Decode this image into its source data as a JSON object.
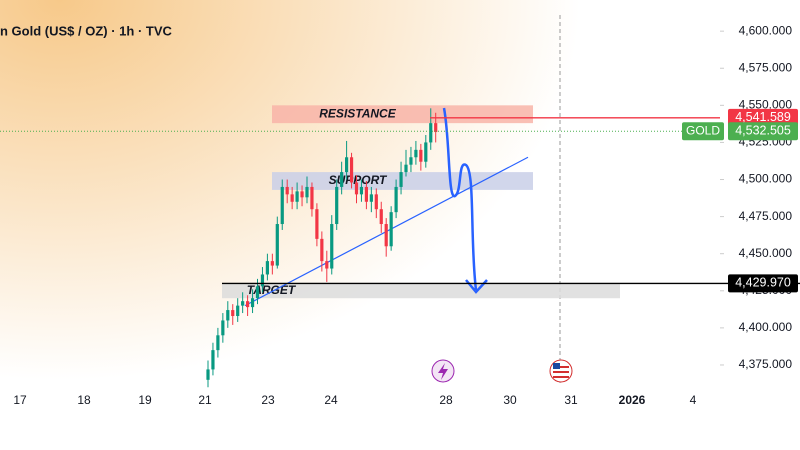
{
  "chart_data": {
    "type": "candlestick",
    "title": "n Gold (US$ / OZ) · 1h · TVC",
    "categories": [
      "17",
      "18",
      "19",
      "21",
      "23",
      "24",
      "28",
      "30",
      "31",
      "2026",
      "4"
    ],
    "open": [
      4365,
      4372,
      4385,
      4395,
      4405,
      4412,
      4408,
      4415,
      4418,
      4414,
      4420,
      4428,
      4436,
      4445,
      4442,
      4470,
      4495,
      4490,
      4485,
      4492,
      4488,
      4495,
      4480,
      4460,
      4445,
      4440,
      4470,
      4495,
      4505,
      4515,
      4498,
      4490,
      4495,
      4485,
      4490,
      4480,
      4470,
      4455,
      4478,
      4495,
      4505,
      4510,
      4515,
      4520,
      4512,
      4525,
      4538
    ],
    "high": [
      4378,
      4390,
      4400,
      4410,
      4418,
      4416,
      4420,
      4424,
      4422,
      4426,
      4433,
      4441,
      4450,
      4450,
      4475,
      4500,
      4500,
      4495,
      4498,
      4496,
      4502,
      4498,
      4484,
      4465,
      4452,
      4476,
      4500,
      4512,
      4526,
      4518,
      4503,
      4500,
      4499,
      4495,
      4494,
      4485,
      4474,
      4482,
      4500,
      4512,
      4520,
      4522,
      4526,
      4524,
      4530,
      4548,
      4545
    ],
    "low": [
      4360,
      4368,
      4380,
      4390,
      4400,
      4402,
      4404,
      4410,
      4408,
      4410,
      4416,
      4424,
      4432,
      4436,
      4440,
      4466,
      4484,
      4480,
      4480,
      4482,
      4484,
      4475,
      4455,
      4438,
      4431,
      4436,
      4466,
      4490,
      4500,
      4494,
      4484,
      4485,
      4480,
      4478,
      4474,
      4464,
      4448,
      4452,
      4474,
      4490,
      4502,
      4505,
      4510,
      4506,
      4508,
      4520,
      4525
    ],
    "close": [
      4372,
      4385,
      4395,
      4405,
      4412,
      4408,
      4415,
      4418,
      4414,
      4420,
      4428,
      4436,
      4445,
      4442,
      4470,
      4495,
      4490,
      4485,
      4492,
      4488,
      4495,
      4480,
      4460,
      4445,
      4440,
      4470,
      4495,
      4505,
      4515,
      4498,
      4490,
      4495,
      4485,
      4490,
      4480,
      4470,
      4455,
      4478,
      4495,
      4505,
      4510,
      4515,
      4520,
      4512,
      4525,
      4538,
      4532
    ],
    "up_color": "#089981",
    "down_color": "#f23645",
    "ylim": [
      4361.5,
      4621
    ],
    "yticks": [
      {
        "value": 4375,
        "label": "4,375.000"
      },
      {
        "value": 4400,
        "label": "4,400.000"
      },
      {
        "value": 4425,
        "label": "4,425.000"
      },
      {
        "value": 4450,
        "label": "4,450.000"
      },
      {
        "value": 4475,
        "label": "4,475.000"
      },
      {
        "value": 4500,
        "label": "4,500.000"
      },
      {
        "value": 4525,
        "label": "4,525.000"
      },
      {
        "value": 4550,
        "label": "4,550.000"
      },
      {
        "value": 4575,
        "label": "4,575.000"
      },
      {
        "value": 4600,
        "label": "4,600.000"
      }
    ],
    "zones": [
      {
        "label": "RESISTANCE",
        "low": 4538,
        "high": 4550,
        "color": "#f8b4a8"
      },
      {
        "label": "SUPPORT",
        "low": 4493,
        "high": 4505,
        "color": "#c9cfe8"
      },
      {
        "label": "TARGET",
        "low": 4420,
        "high": 4430,
        "color": "#dcdcdc"
      }
    ],
    "price_lines": [
      {
        "value": 4541.589,
        "label": "4,541.589",
        "color": "#f23645"
      },
      {
        "name": "GOLD",
        "value": 4532.505,
        "label": "4,532.505",
        "color": "#4caf50"
      },
      {
        "value": 4429.97,
        "label": "4,429.970",
        "color": "#000000"
      }
    ],
    "trendline": [
      4415,
      4515
    ]
  }
}
